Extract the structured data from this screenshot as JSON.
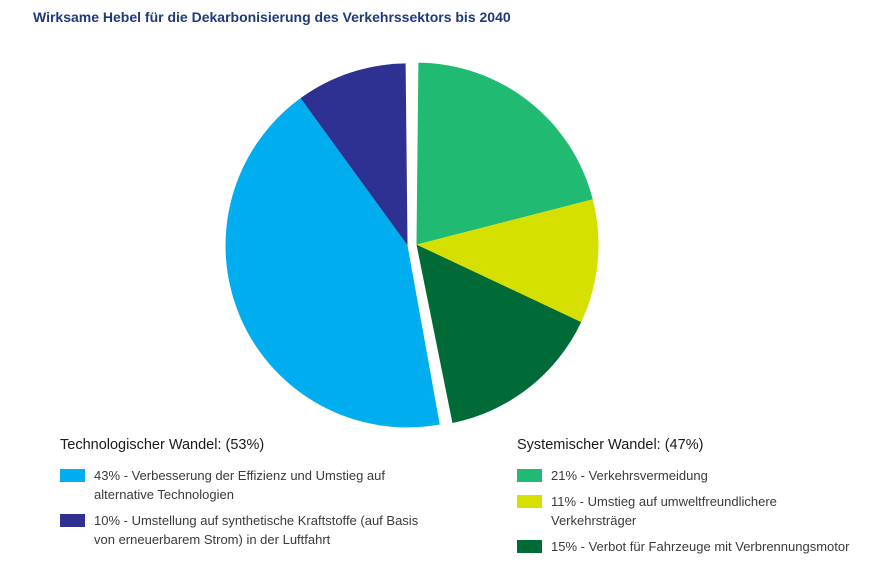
{
  "title": "Wirksame Hebel für die Dekarbonisierung des Verkehrssektors bis 2040",
  "legend": {
    "technological": {
      "heading": "Technologischer Wandel: (53%)",
      "items": [
        {
          "text": "43% - Verbesserung der Effizienz und Umstieg auf alternative Technologien",
          "color": "#00aeef"
        },
        {
          "text": "10% - Umstellung auf synthetische Kraftstoffe (auf Basis von erneuerbarem Strom) in der Luftfahrt",
          "color": "#2e3192"
        }
      ]
    },
    "systemic": {
      "heading": "Systemischer Wandel: (47%)",
      "items": [
        {
          "text": "21% - Verkehrsvermeidung",
          "color": "#21ba72"
        },
        {
          "text": "11% - Umstieg auf umweltfreundlichere Verkehrsträger",
          "color": "#d6e000"
        },
        {
          "text": "15% - Verbot für Fahrzeuge mit Verbrennungsmotor",
          "color": "#006b37"
        }
      ]
    }
  },
  "chart_data": {
    "type": "pie",
    "title": "Wirksame Hebel für die Dekarbonisierung des Verkehrssektors bis 2040",
    "groups": [
      {
        "name": "Systemischer Wandel",
        "total": 47,
        "series": [
          {
            "name": "Verkehrsvermeidung",
            "value": 21,
            "color": "#21ba72"
          },
          {
            "name": "Umstieg auf umweltfreundlichere Verkehrsträger",
            "value": 11,
            "color": "#d6e000"
          },
          {
            "name": "Verbot für Fahrzeuge mit Verbrennungsmotor",
            "value": 15,
            "color": "#006b37"
          }
        ]
      },
      {
        "name": "Technologischer Wandel",
        "total": 53,
        "series": [
          {
            "name": "Verbesserung der Effizienz und Umstieg auf alternative Technologien",
            "value": 43,
            "color": "#00aeef"
          },
          {
            "name": "Umstellung auf synthetische Kraftstoffe (auf Basis von erneuerbarem Strom) in der Luftfahrt",
            "value": 10,
            "color": "#2e3192"
          }
        ]
      }
    ],
    "unit": "%"
  }
}
